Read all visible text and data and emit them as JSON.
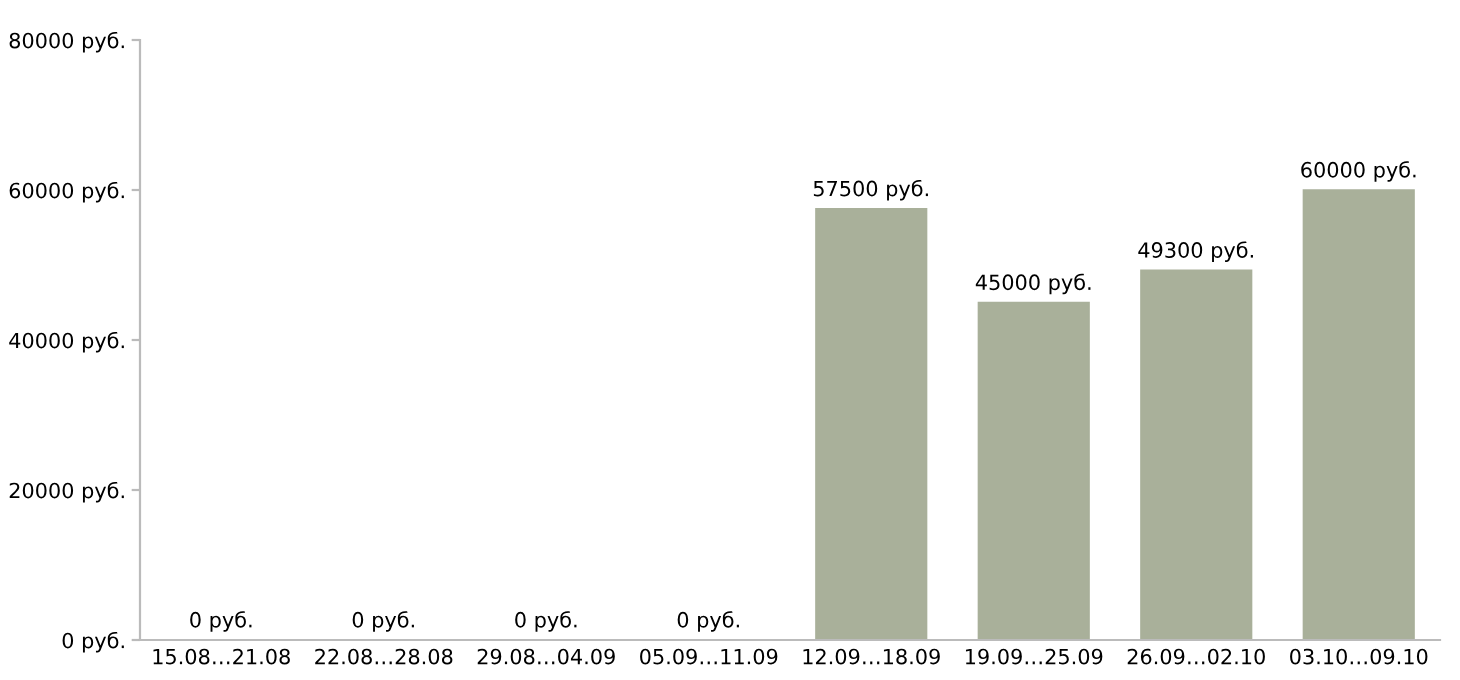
{
  "chart_data": {
    "type": "bar",
    "categories": [
      "15.08…21.08",
      "22.08…28.08",
      "29.08…04.09",
      "05.09…11.09",
      "12.09…18.09",
      "19.09…25.09",
      "26.09…02.10",
      "03.10…09.10"
    ],
    "values": [
      0,
      0,
      0,
      0,
      57500,
      45000,
      49300,
      60000
    ],
    "value_labels": [
      "0 руб.",
      "0 руб.",
      "0 руб.",
      "0 руб.",
      "57500 руб.",
      "45000 руб.",
      "49300 руб.",
      "60000 руб."
    ],
    "color": "#a9b09a",
    "ylim": [
      0,
      80000
    ],
    "yticks": [
      {
        "value": 0,
        "label": "0 руб."
      },
      {
        "value": 20000,
        "label": "20000 руб."
      },
      {
        "value": 40000,
        "label": "40000 руб."
      },
      {
        "value": 60000,
        "label": "60000 руб."
      },
      {
        "value": 80000,
        "label": "80000 руб."
      }
    ],
    "grid": false
  }
}
